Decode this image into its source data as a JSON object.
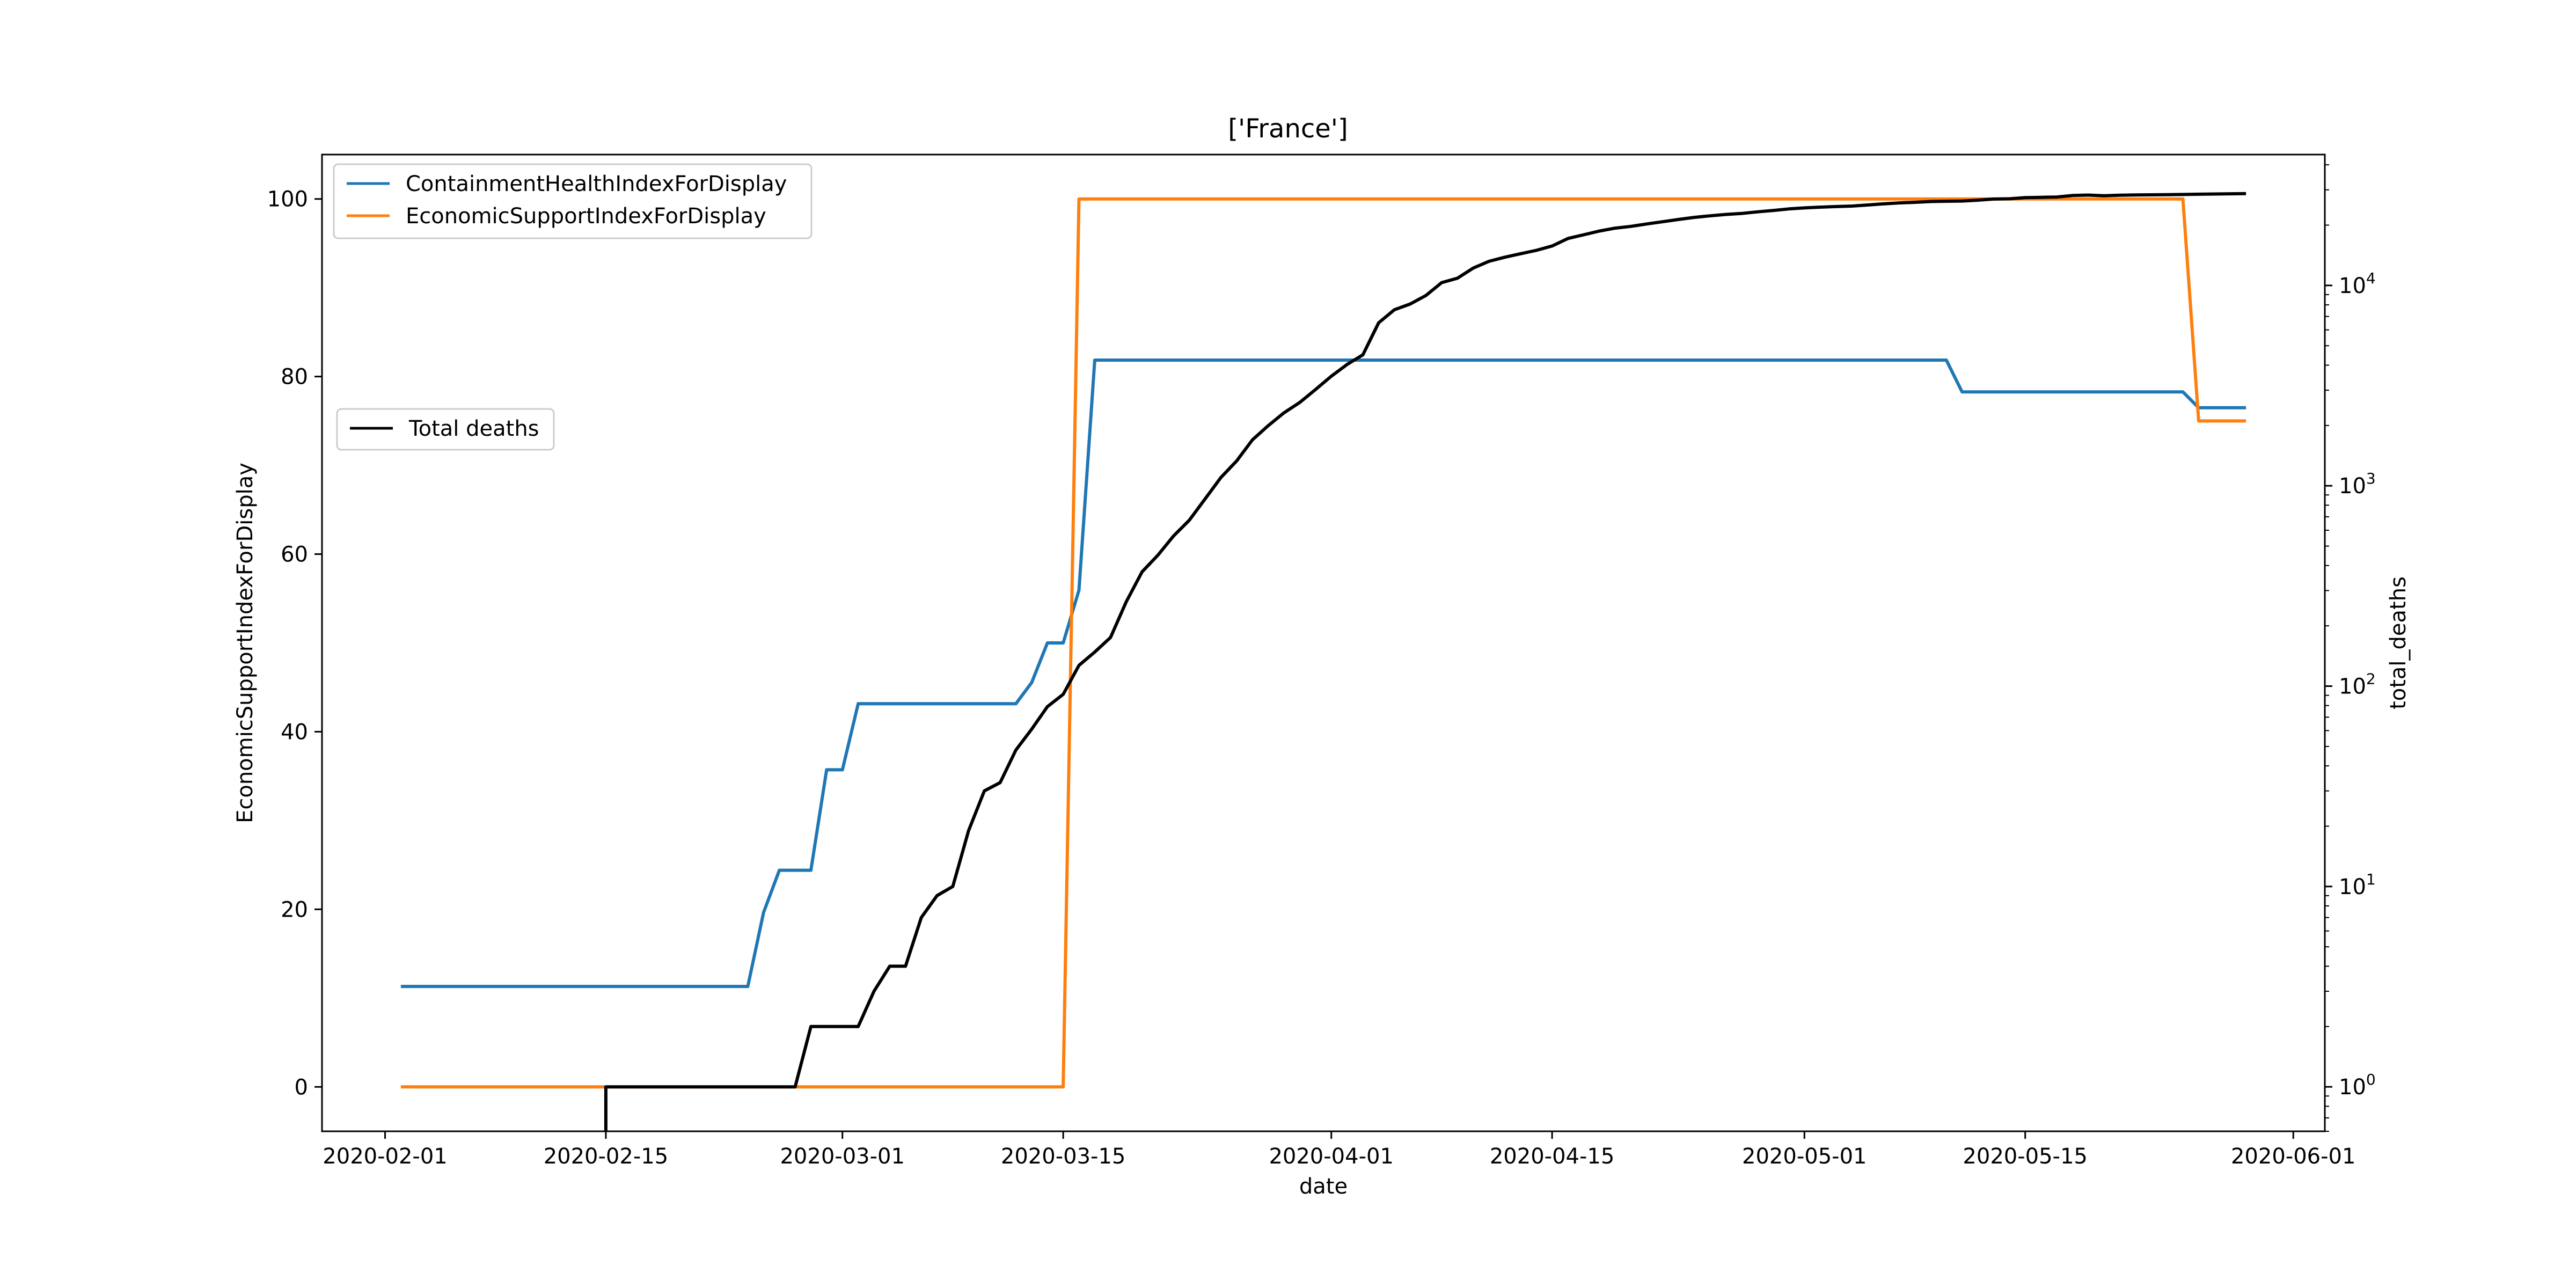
{
  "chart_data": {
    "type": "line",
    "title": "['France']",
    "xlabel": "date",
    "ylabel": "EconomicSupportIndexForDisplay",
    "y2label": "total_deaths",
    "x_type": "date",
    "xlim": [
      "2020-01-28",
      "2020-06-03"
    ],
    "ylim": [
      -5,
      105
    ],
    "y2lim": [
      0.6,
      45000
    ],
    "y2_scale": "log",
    "grid": false,
    "x_ticks": [
      "2020-02-01",
      "2020-02-15",
      "2020-03-01",
      "2020-03-15",
      "2020-04-01",
      "2020-04-15",
      "2020-05-01",
      "2020-05-15",
      "2020-06-01"
    ],
    "y_ticks": [
      0,
      20,
      40,
      60,
      80,
      100
    ],
    "y2_ticks": [
      {
        "value": 1,
        "base": "10",
        "exp": "0"
      },
      {
        "value": 10,
        "base": "10",
        "exp": "1"
      },
      {
        "value": 100,
        "base": "10",
        "exp": "2"
      },
      {
        "value": 1000,
        "base": "10",
        "exp": "3"
      },
      {
        "value": 10000,
        "base": "10",
        "exp": "4"
      }
    ],
    "legend_left_top": "top-left",
    "legend_left_middle": "center-left",
    "series": [
      {
        "name": "ContainmentHealthIndexForDisplay",
        "axis": "left",
        "color": "#1f77b4",
        "points": [
          [
            "2020-02-02",
            11.31
          ],
          [
            "2020-02-24",
            11.31
          ],
          [
            "2020-02-25",
            19.64
          ],
          [
            "2020-02-26",
            24.4
          ],
          [
            "2020-02-28",
            24.4
          ],
          [
            "2020-02-29",
            35.71
          ],
          [
            "2020-03-01",
            35.71
          ],
          [
            "2020-03-02",
            43.15
          ],
          [
            "2020-03-12",
            43.15
          ],
          [
            "2020-03-13",
            45.54
          ],
          [
            "2020-03-14",
            50.0
          ],
          [
            "2020-03-15",
            50.0
          ],
          [
            "2020-03-16",
            55.95
          ],
          [
            "2020-03-17",
            81.85
          ],
          [
            "2020-05-10",
            81.85
          ],
          [
            "2020-05-11",
            78.27
          ],
          [
            "2020-05-25",
            78.27
          ],
          [
            "2020-05-26",
            76.49
          ],
          [
            "2020-05-29",
            76.49
          ]
        ]
      },
      {
        "name": "EconomicSupportIndexForDisplay",
        "axis": "left",
        "color": "#ff7f0e",
        "points": [
          [
            "2020-02-02",
            0
          ],
          [
            "2020-03-15",
            0
          ],
          [
            "2020-03-16",
            100
          ],
          [
            "2020-05-25",
            100
          ],
          [
            "2020-05-26",
            75
          ],
          [
            "2020-05-29",
            75
          ]
        ]
      },
      {
        "name": "Total deaths",
        "axis": "right",
        "color": "#000000",
        "points": [
          [
            "2020-02-15",
            1
          ],
          [
            "2020-02-16",
            1
          ],
          [
            "2020-02-26",
            1
          ],
          [
            "2020-02-27",
            1
          ],
          [
            "2020-02-28",
            2
          ],
          [
            "2020-03-01",
            2
          ],
          [
            "2020-03-02",
            2
          ],
          [
            "2020-03-03",
            3
          ],
          [
            "2020-03-04",
            4
          ],
          [
            "2020-03-05",
            4
          ],
          [
            "2020-03-06",
            7
          ],
          [
            "2020-03-07",
            9
          ],
          [
            "2020-03-08",
            10
          ],
          [
            "2020-03-09",
            19
          ],
          [
            "2020-03-10",
            30
          ],
          [
            "2020-03-11",
            33
          ],
          [
            "2020-03-12",
            48
          ],
          [
            "2020-03-13",
            61
          ],
          [
            "2020-03-14",
            79
          ],
          [
            "2020-03-15",
            91
          ],
          [
            "2020-03-16",
            127
          ],
          [
            "2020-03-17",
            148
          ],
          [
            "2020-03-18",
            175
          ],
          [
            "2020-03-19",
            264
          ],
          [
            "2020-03-20",
            372
          ],
          [
            "2020-03-21",
            450
          ],
          [
            "2020-03-22",
            562
          ],
          [
            "2020-03-23",
            674
          ],
          [
            "2020-03-24",
            860
          ],
          [
            "2020-03-25",
            1100
          ],
          [
            "2020-03-26",
            1331
          ],
          [
            "2020-03-27",
            1696
          ],
          [
            "2020-03-28",
            1995
          ],
          [
            "2020-03-29",
            2314
          ],
          [
            "2020-03-30",
            2606
          ],
          [
            "2020-03-31",
            3024
          ],
          [
            "2020-04-01",
            3523
          ],
          [
            "2020-04-02",
            4032
          ],
          [
            "2020-04-03",
            4503
          ],
          [
            "2020-04-04",
            6507
          ],
          [
            "2020-04-05",
            7560
          ],
          [
            "2020-04-06",
            8078
          ],
          [
            "2020-04-07",
            8911
          ],
          [
            "2020-04-08",
            10328
          ],
          [
            "2020-04-09",
            10869
          ],
          [
            "2020-04-10",
            12210
          ],
          [
            "2020-04-11",
            13197
          ],
          [
            "2020-04-12",
            13832
          ],
          [
            "2020-04-13",
            14393
          ],
          [
            "2020-04-14",
            14967
          ],
          [
            "2020-04-15",
            15729
          ],
          [
            "2020-04-16",
            17148
          ],
          [
            "2020-04-17",
            17901
          ],
          [
            "2020-04-18",
            18681
          ],
          [
            "2020-04-19",
            19323
          ],
          [
            "2020-04-20",
            19718
          ],
          [
            "2020-04-21",
            20265
          ],
          [
            "2020-04-22",
            20796
          ],
          [
            "2020-04-23",
            21340
          ],
          [
            "2020-04-24",
            21856
          ],
          [
            "2020-04-25",
            22245
          ],
          [
            "2020-04-26",
            22614
          ],
          [
            "2020-04-27",
            22856
          ],
          [
            "2020-04-28",
            23293
          ],
          [
            "2020-04-29",
            23660
          ],
          [
            "2020-04-30",
            24087
          ],
          [
            "2020-05-01",
            24376
          ],
          [
            "2020-05-02",
            24594
          ],
          [
            "2020-05-03",
            24760
          ],
          [
            "2020-05-04",
            24895
          ],
          [
            "2020-05-05",
            25201
          ],
          [
            "2020-05-06",
            25531
          ],
          [
            "2020-05-07",
            25809
          ],
          [
            "2020-05-08",
            25987
          ],
          [
            "2020-05-09",
            26230
          ],
          [
            "2020-05-10",
            26310
          ],
          [
            "2020-05-11",
            26380
          ],
          [
            "2020-05-12",
            26643
          ],
          [
            "2020-05-13",
            26991
          ],
          [
            "2020-05-14",
            27074
          ],
          [
            "2020-05-15",
            27425
          ],
          [
            "2020-05-16",
            27529
          ],
          [
            "2020-05-17",
            27625
          ],
          [
            "2020-05-18",
            28108
          ],
          [
            "2020-05-19",
            28239
          ],
          [
            "2020-05-20",
            28022
          ],
          [
            "2020-05-21",
            28215
          ],
          [
            "2020-05-22",
            28289
          ],
          [
            "2020-05-23",
            28332
          ],
          [
            "2020-05-24",
            28367
          ],
          [
            "2020-05-25",
            28432
          ],
          [
            "2020-05-26",
            28530
          ],
          [
            "2020-05-27",
            28596
          ],
          [
            "2020-05-28",
            28662
          ],
          [
            "2020-05-29",
            28714
          ]
        ]
      }
    ]
  }
}
